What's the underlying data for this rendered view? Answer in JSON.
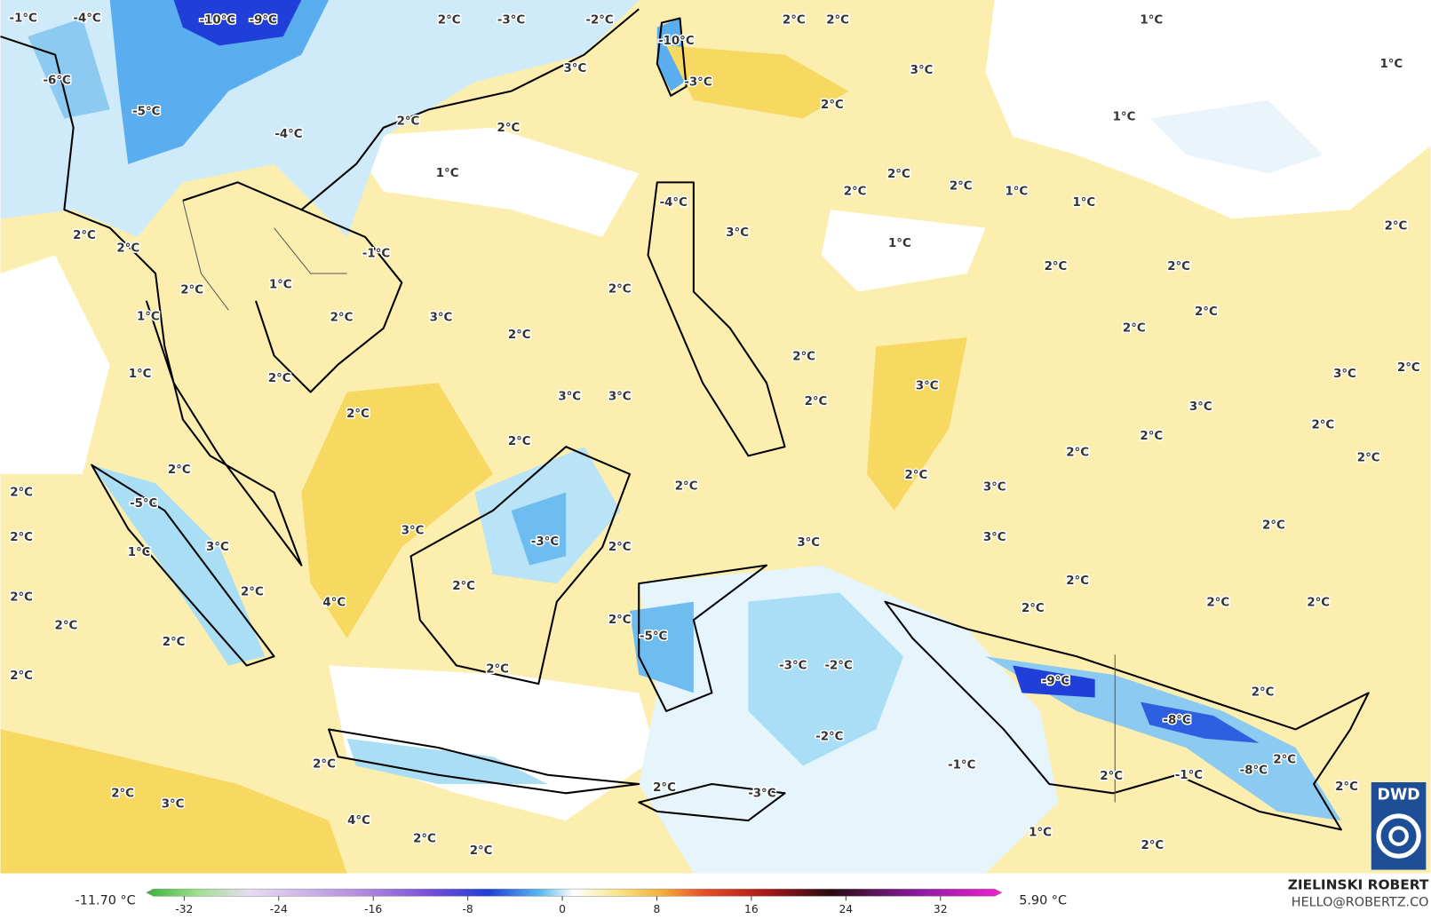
{
  "map": {
    "labels": [
      "-1°C",
      "-4°C",
      "-10°C",
      "-9°C",
      "2°C",
      "-3°C",
      "-2°C",
      "-10°C",
      "2°C",
      "2°C",
      "1°C",
      "-6°C",
      "3°C",
      "-3°C",
      "3°C",
      "2°C",
      "1°C",
      "-5°C",
      "2°C",
      "2°C",
      "-4°C",
      "1°C",
      "1°C",
      "2°C",
      "2°C",
      "2°C",
      "1°C",
      "1°C",
      "-4°C",
      "3°C",
      "2°C",
      "1°C",
      "2°C",
      "2°C",
      "-1°C",
      "2°C",
      "2°C",
      "1°C",
      "2°C",
      "2°C",
      "1°C",
      "2°C",
      "3°C",
      "2°C",
      "2°C",
      "2°C",
      "2°C",
      "1°C",
      "2°C",
      "3°C",
      "2°C",
      "3°C",
      "3°C",
      "3°C",
      "2°C",
      "3°C",
      "2°C",
      "2°C",
      "2°C",
      "2°C",
      "2°C",
      "2°C",
      "2°C",
      "2°C",
      "2°C",
      "3°C",
      "2°C",
      "-5°C",
      "2°C",
      "3°C",
      "3°C",
      "2°C",
      "-3°C",
      "3°C",
      "2°C",
      "1°C",
      "3°C",
      "2°C",
      "2°C",
      "2°C",
      "2°C",
      "4°C",
      "2°C",
      "2°C",
      "2°C",
      "2°C",
      "2°C",
      "-5°C",
      "2°C",
      "-3°C",
      "-2°C",
      "2°C",
      "-9°C",
      "2°C",
      "2°C",
      "-8°C",
      "-2°C",
      "2°C",
      "-1°C",
      "2°C",
      "-8°C",
      "2°C",
      "-1°C",
      "2°C",
      "-3°C",
      "2°C",
      "2°C",
      "3°C",
      "4°C",
      "1°C",
      "2°C",
      "2°C",
      "2°C"
    ],
    "logo": "DWD"
  },
  "colorbar": {
    "min_label": "-11.70 °C",
    "max_label": "5.90 °C",
    "lim": [
      -35.2,
      37.2
    ],
    "ticks": [
      -32,
      -24,
      -16,
      -8,
      0,
      8,
      16,
      24,
      32
    ]
  },
  "credits": {
    "name": "ZIELINSKI ROBERT",
    "contact": "HELLO@ROBERTZ.CO"
  }
}
